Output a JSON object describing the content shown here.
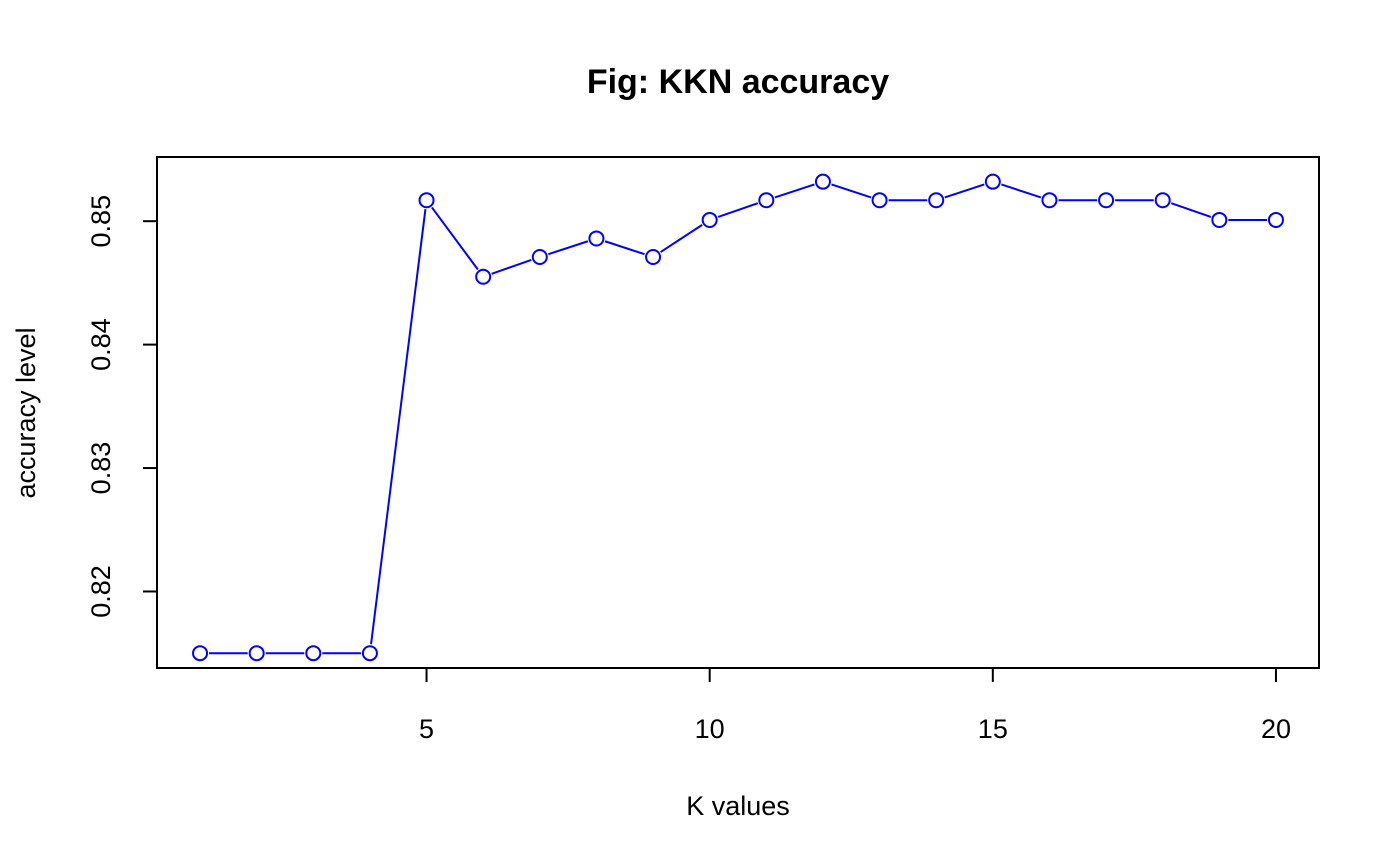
{
  "chart_data": {
    "type": "line",
    "title": "Fig: KKN accuracy",
    "xlabel": "K values",
    "ylabel": "accuracy level",
    "x": [
      1,
      2,
      3,
      4,
      5,
      6,
      7,
      8,
      9,
      10,
      11,
      12,
      13,
      14,
      15,
      16,
      17,
      18,
      19,
      20
    ],
    "series": [
      {
        "values": [
          0.815,
          0.815,
          0.815,
          0.815,
          0.8517,
          0.8455,
          0.8471,
          0.8486,
          0.8471,
          0.8501,
          0.8517,
          0.8532,
          0.8517,
          0.8517,
          0.8532,
          0.8517,
          0.8517,
          0.8517,
          0.8501,
          0.8501
        ],
        "color": "#0000ff",
        "style": "both"
      }
    ],
    "xlim": [
      0.24,
      20.76
    ],
    "ylim": [
      0.8138,
      0.8552
    ],
    "xticks": [
      5,
      10,
      15,
      20
    ],
    "yticks": [
      0.82,
      0.83,
      0.84,
      0.85
    ],
    "xtick_labels": [
      "5",
      "10",
      "15",
      "20"
    ],
    "ytick_labels": [
      "0.82",
      "0.83",
      "0.84",
      "0.85"
    ],
    "grid": false,
    "legend": "none"
  }
}
